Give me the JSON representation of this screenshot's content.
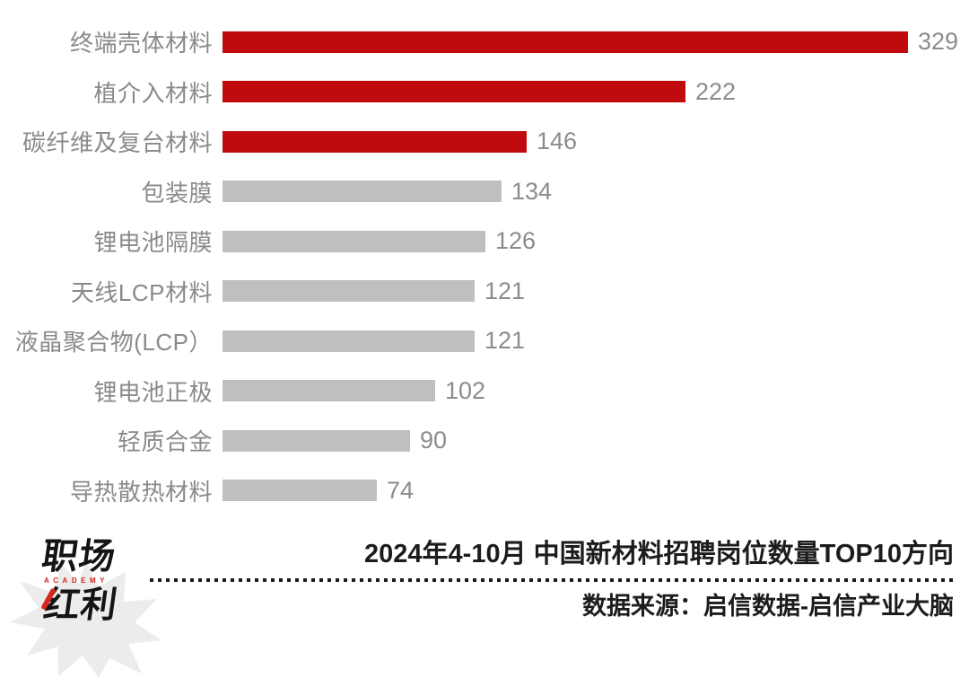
{
  "page": {
    "background": "#ffffff"
  },
  "chart_data": {
    "type": "bar",
    "orientation": "horizontal",
    "title": "2024年4-10月 中国新材料招聘岗位数量TOP10方向",
    "source": "数据来源：启信数据-启信产业大脑",
    "categories": [
      "终端壳体材料",
      "植介入材料",
      "碳纤维及复台材料",
      "包装膜",
      "锂电池隔膜",
      "天线LCP材料",
      "液晶聚合物(LCP）",
      "锂电池正极",
      "轻质合金",
      "导热散热材料"
    ],
    "values": [
      329,
      222,
      146,
      134,
      126,
      121,
      121,
      102,
      90,
      74
    ],
    "value_labels_shown": true,
    "highlight_count": 3,
    "xlim": [
      0,
      345
    ],
    "grid": false,
    "legend": "none",
    "colors": {
      "highlight_bar": "#c00b0e",
      "normal_bar": "#bfbfbf",
      "category_label": "#8a8a8a",
      "value_label": "#8c8c8c",
      "title_text": "#1c1c1c"
    }
  },
  "footer": {
    "logo": {
      "line1": "职场",
      "subtitle": "ACADEMY",
      "line2": "红利",
      "accent_color": "#d8281e",
      "starburst_color": "#ececec"
    }
  }
}
